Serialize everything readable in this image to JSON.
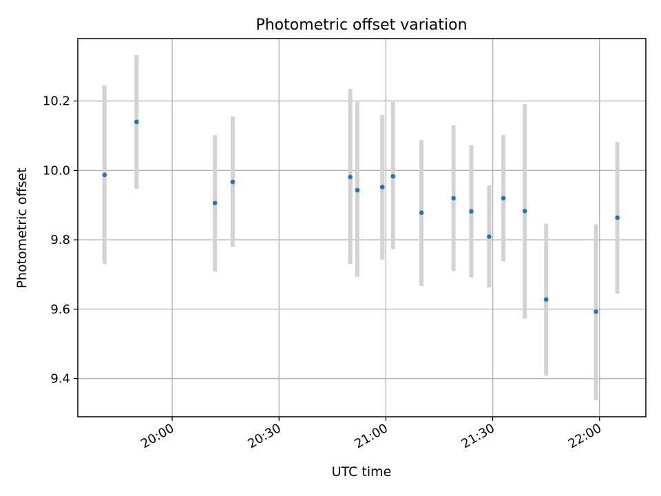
{
  "chart_data": {
    "type": "scatter",
    "title": "Photometric offset variation",
    "xlabel": "UTC time",
    "ylabel": "Photometric offset",
    "x_format": "HH:MM",
    "xlim": [
      "19:33:30",
      "22:13:00"
    ],
    "ylim": [
      9.29,
      10.38
    ],
    "x_ticks": [
      "20:00",
      "20:30",
      "21:00",
      "21:30",
      "22:00"
    ],
    "y_ticks": [
      9.4,
      9.6,
      9.8,
      10.0,
      10.2
    ],
    "grid": true,
    "legend": "none",
    "colors": {
      "point": "#1f77b4",
      "errorbar": "#d3d3d3",
      "grid": "#b0b0b0"
    },
    "points": [
      {
        "x": "19:41",
        "y": 9.987,
        "low": 9.73,
        "high": 10.245
      },
      {
        "x": "19:50",
        "y": 10.14,
        "low": 9.947,
        "high": 10.332
      },
      {
        "x": "20:12",
        "y": 9.906,
        "low": 9.708,
        "high": 10.102
      },
      {
        "x": "20:17",
        "y": 9.967,
        "low": 9.78,
        "high": 10.155
      },
      {
        "x": "20:50",
        "y": 9.981,
        "low": 9.73,
        "high": 10.235
      },
      {
        "x": "20:52",
        "y": 9.943,
        "low": 9.693,
        "high": 10.197
      },
      {
        "x": "20:59",
        "y": 9.952,
        "low": 9.743,
        "high": 10.16
      },
      {
        "x": "21:02",
        "y": 9.983,
        "low": 9.773,
        "high": 10.197
      },
      {
        "x": "21:10",
        "y": 9.878,
        "low": 9.667,
        "high": 10.088
      },
      {
        "x": "21:19",
        "y": 9.92,
        "low": 9.71,
        "high": 10.13
      },
      {
        "x": "21:24",
        "y": 9.882,
        "low": 9.692,
        "high": 10.073
      },
      {
        "x": "21:29",
        "y": 9.809,
        "low": 9.663,
        "high": 9.957
      },
      {
        "x": "21:33",
        "y": 9.92,
        "low": 9.738,
        "high": 10.102
      },
      {
        "x": "21:39",
        "y": 9.883,
        "low": 9.573,
        "high": 10.192
      },
      {
        "x": "21:45",
        "y": 9.628,
        "low": 9.408,
        "high": 9.847
      },
      {
        "x": "21:59",
        "y": 9.593,
        "low": 9.338,
        "high": 9.845
      },
      {
        "x": "22:05",
        "y": 9.864,
        "low": 9.645,
        "high": 10.082
      }
    ]
  }
}
